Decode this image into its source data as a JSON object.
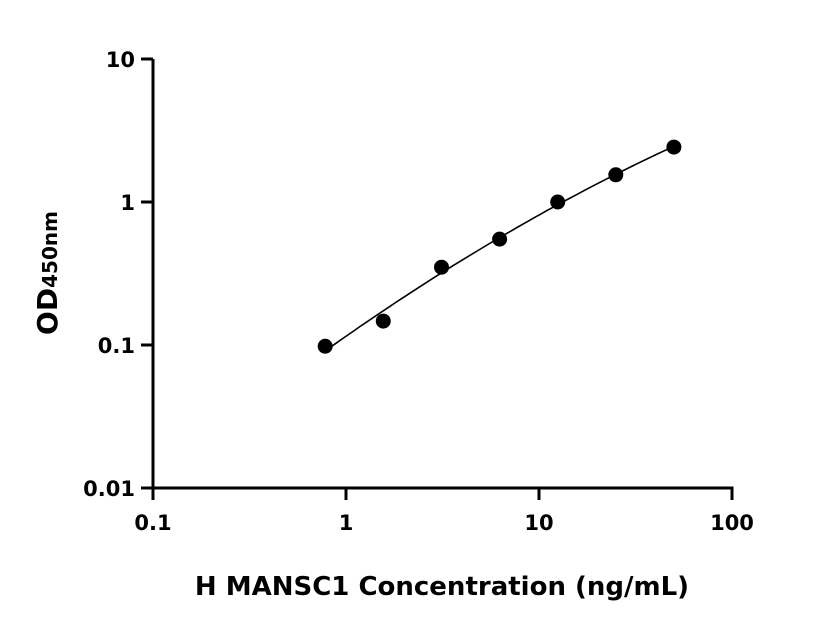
{
  "chart_data": {
    "type": "scatter",
    "title": "",
    "xlabel": "H MANSC1 Concentration (ng/mL)",
    "ylabel_main": "OD",
    "ylabel_sub": "450nm",
    "x_scale": "log",
    "y_scale": "log",
    "xlim": [
      0.1,
      100
    ],
    "ylim": [
      0.01,
      10
    ],
    "x_ticks": [
      "0.1",
      "1",
      "10",
      "100"
    ],
    "y_ticks": [
      "0.01",
      "0.1",
      "1",
      "10"
    ],
    "grid": false,
    "legend": "none",
    "fit_curve": true,
    "marker_color": "#000000",
    "points": [
      {
        "x": 0.78,
        "y": 0.098
      },
      {
        "x": 1.56,
        "y": 0.147
      },
      {
        "x": 3.125,
        "y": 0.35
      },
      {
        "x": 6.25,
        "y": 0.55
      },
      {
        "x": 12.5,
        "y": 1.0
      },
      {
        "x": 25,
        "y": 1.55
      },
      {
        "x": 50,
        "y": 2.42
      }
    ]
  }
}
